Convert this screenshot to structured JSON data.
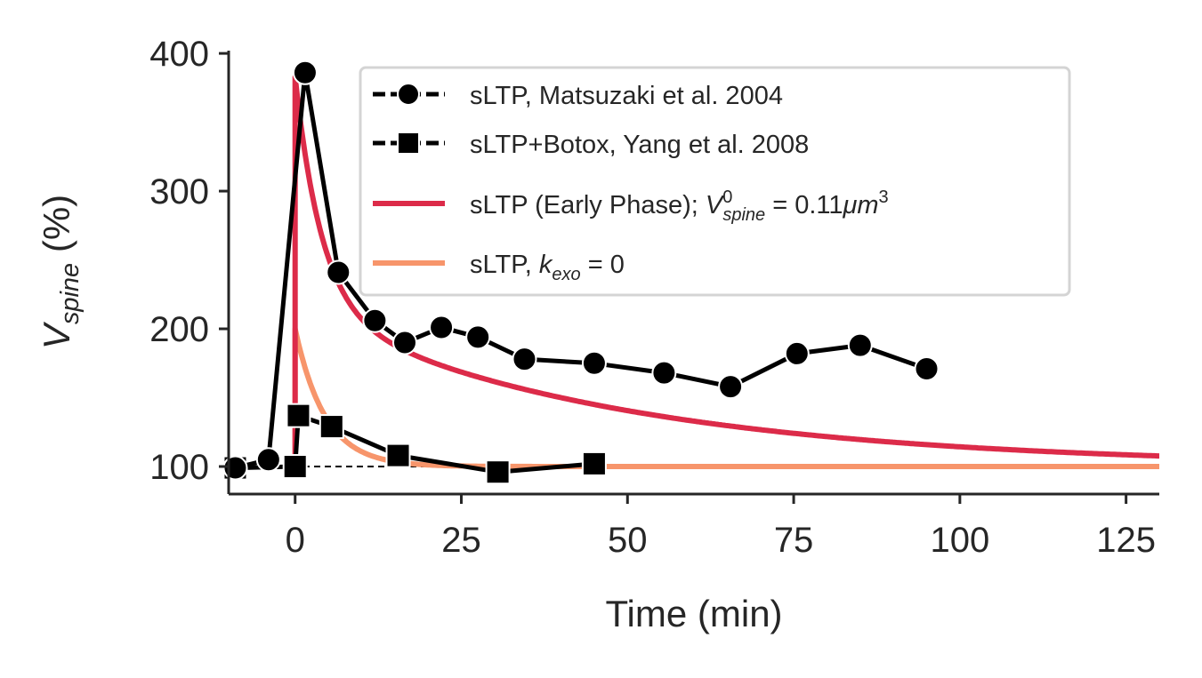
{
  "chart_data": {
    "type": "line",
    "xlabel": "Time (min)",
    "ylabel": {
      "base": "V",
      "sub": "spine",
      "rest": " (%)"
    },
    "xlim": [
      -10,
      130
    ],
    "ylim": [
      80,
      402
    ],
    "x_ticks": [
      0,
      25,
      50,
      75,
      100,
      125
    ],
    "y_ticks": [
      100,
      200,
      300,
      400
    ],
    "reference_line": {
      "y": 100,
      "style": "dashed",
      "color": "#000000"
    },
    "legend_position": "top-right",
    "series": [
      {
        "name": "sLTP, Matsuzaki et al. 2004",
        "kind": "markers-line",
        "marker": "circle",
        "color": "#000000",
        "x": [
          -9,
          -4,
          1.5,
          6.5,
          12,
          16.5,
          22,
          27.5,
          34.5,
          45,
          55.5,
          65.5,
          75.5,
          85,
          95
        ],
        "y": [
          99,
          105,
          386,
          241,
          206,
          190,
          201,
          194,
          178,
          175,
          168,
          158,
          182,
          188,
          171
        ]
      },
      {
        "name": "sLTP+Botox, Yang et al. 2008",
        "kind": "markers-line",
        "marker": "square",
        "color": "#000000",
        "x": [
          -9,
          0,
          0.5,
          5.5,
          15.5,
          30.5,
          45
        ],
        "y": [
          99,
          100,
          137,
          129,
          108,
          96,
          102
        ]
      },
      {
        "name_parts": [
          "sLTP (Early Phase); ",
          "V",
          "0",
          "spine",
          " = 0.11",
          "μm",
          "3"
        ],
        "kind": "model",
        "color": "#dc2b49",
        "baseline": 100,
        "x_start": 0,
        "peak": 383,
        "fast_amplitude": 168,
        "fast_tau": 4,
        "slow_amplitude": 115,
        "slow_tau": 48
      },
      {
        "name_parts": [
          "sLTP, ",
          "k",
          "exo",
          " = 0"
        ],
        "kind": "model",
        "color": "#f7956b",
        "baseline": 100,
        "x_start": 0,
        "peak": 200,
        "fast_amplitude": 100,
        "fast_tau": 4.5,
        "slow_amplitude": 0,
        "slow_tau": 1
      }
    ]
  }
}
